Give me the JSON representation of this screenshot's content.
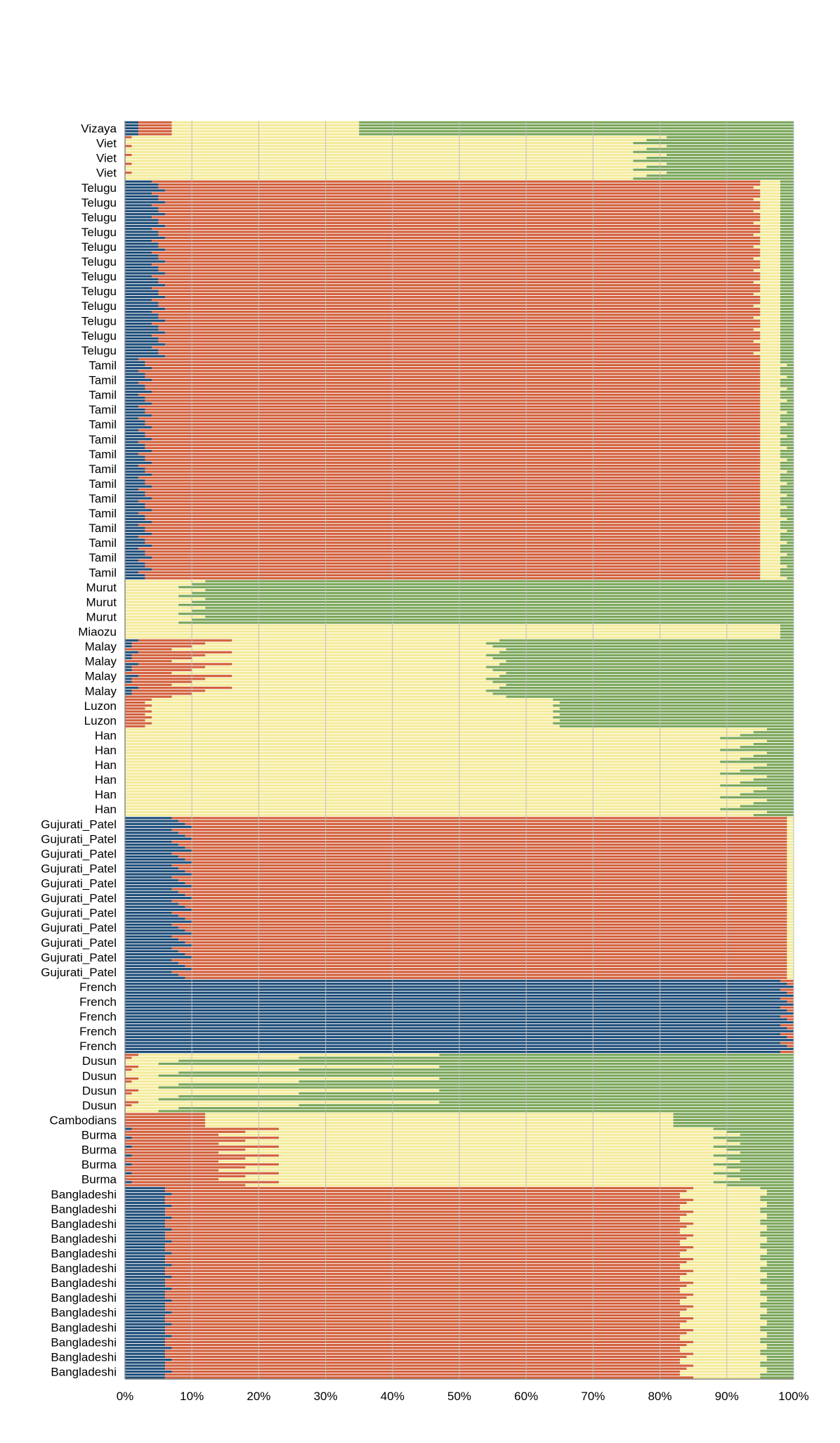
{
  "colors": {
    "blue": "#1f4e79",
    "red": "#d2603d",
    "yellow": "#f4eb9a",
    "green": "#7aa65a",
    "grid": "#bdbdbd"
  },
  "chart_data": {
    "type": "bar",
    "orientation": "horizontal-stacked",
    "title": "",
    "xlabel": "",
    "ylabel": "",
    "xlim": [
      0,
      100
    ],
    "x_ticks": [
      "0%",
      "10%",
      "20%",
      "30%",
      "40%",
      "50%",
      "60%",
      "70%",
      "80%",
      "90%",
      "100%"
    ],
    "grid": true,
    "legend": "none",
    "series": [
      {
        "color": "#1f4e79"
      },
      {
        "color": "#d2603d"
      },
      {
        "color": "#f4eb9a"
      },
      {
        "color": "#7aa65a"
      }
    ],
    "groups": [
      {
        "label": "Vizaya",
        "count": 1,
        "rows": [
          [
            2,
            5,
            28,
            65
          ]
        ]
      },
      {
        "label": "Viet",
        "count": 3,
        "rows": [
          [
            0,
            1,
            80,
            19
          ],
          [
            0,
            0,
            78,
            22
          ],
          [
            0,
            0,
            76,
            24
          ]
        ]
      },
      {
        "label": "Telugu",
        "count": 12,
        "rows": [
          [
            4,
            91,
            3,
            2
          ],
          [
            5,
            90,
            3,
            2
          ],
          [
            5,
            89,
            4,
            2
          ],
          [
            6,
            89,
            3,
            2
          ]
        ]
      },
      {
        "label": "Tamil",
        "count": 15,
        "rows": [
          [
            2,
            93,
            3,
            2
          ],
          [
            3,
            92,
            3,
            2
          ],
          [
            3,
            92,
            4,
            1
          ],
          [
            4,
            91,
            3,
            2
          ]
        ]
      },
      {
        "label": "Murut",
        "count": 3,
        "rows": [
          [
            0,
            0,
            12,
            88
          ],
          [
            0,
            0,
            10,
            90
          ],
          [
            0,
            0,
            8,
            92
          ]
        ]
      },
      {
        "label": "Miaozu",
        "count": 1,
        "rows": [
          [
            0,
            0,
            98,
            2
          ]
        ]
      },
      {
        "label": "Malay",
        "count": 4,
        "rows": [
          [
            2,
            14,
            40,
            44
          ],
          [
            1,
            11,
            42,
            46
          ],
          [
            1,
            9,
            45,
            45
          ],
          [
            0,
            7,
            50,
            43
          ]
        ]
      },
      {
        "label": "Luzon",
        "count": 2,
        "rows": [
          [
            0,
            4,
            60,
            36
          ],
          [
            0,
            3,
            62,
            35
          ]
        ]
      },
      {
        "label": "Han",
        "count": 6,
        "rows": [
          [
            0,
            0,
            96,
            4
          ],
          [
            0,
            0,
            94,
            6
          ],
          [
            0,
            0,
            92,
            8
          ],
          [
            0,
            0,
            89,
            11
          ]
        ]
      },
      {
        "label": "Gujurati_Patel",
        "count": 11,
        "rows": [
          [
            7,
            92,
            1,
            0
          ],
          [
            8,
            91,
            1,
            0
          ],
          [
            9,
            90,
            1,
            0
          ],
          [
            10,
            89,
            1,
            0
          ]
        ]
      },
      {
        "label": "French",
        "count": 5,
        "rows": [
          [
            98,
            2,
            0,
            0
          ],
          [
            99,
            1,
            0,
            0
          ],
          [
            100,
            0,
            0,
            0
          ]
        ]
      },
      {
        "label": "Dusun",
        "count": 4,
        "rows": [
          [
            0,
            2,
            45,
            53
          ],
          [
            0,
            1,
            25,
            74
          ],
          [
            0,
            0,
            8,
            92
          ],
          [
            0,
            0,
            5,
            95
          ]
        ]
      },
      {
        "label": "Cambodians",
        "count": 1,
        "rows": [
          [
            0,
            12,
            70,
            18
          ]
        ]
      },
      {
        "label": "Burma",
        "count": 4,
        "rows": [
          [
            1,
            22,
            65,
            12
          ],
          [
            0,
            18,
            72,
            10
          ],
          [
            0,
            14,
            78,
            8
          ]
        ]
      },
      {
        "label": "Bangladeshi",
        "count": 13,
        "rows": [
          [
            6,
            79,
            10,
            5
          ],
          [
            6,
            78,
            12,
            4
          ],
          [
            7,
            76,
            13,
            4
          ],
          [
            6,
            77,
            12,
            5
          ]
        ]
      }
    ]
  }
}
